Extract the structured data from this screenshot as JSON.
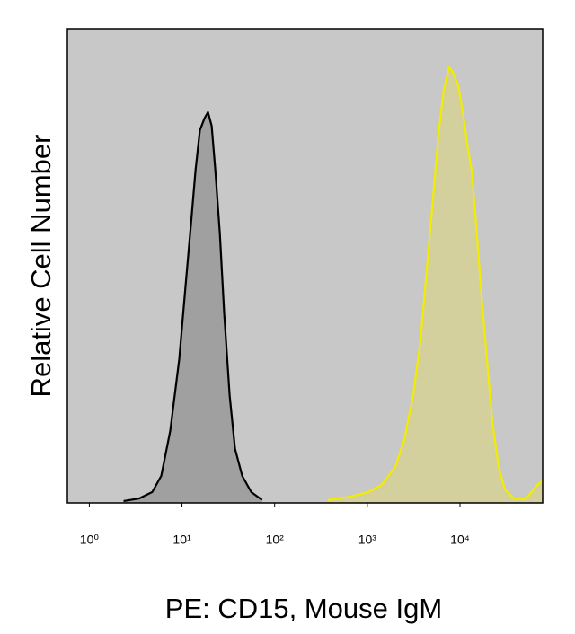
{
  "chart_data": {
    "type": "histogram-overlay",
    "x_label": "PE: CD15, Mouse IgM",
    "y_label": "Relative Cell Number",
    "x_log": true,
    "xlim": [
      0.58,
      78000
    ],
    "ylim": [
      0,
      100
    ],
    "xticks": [
      {
        "value": 1,
        "label": "10⁰"
      },
      {
        "value": 10,
        "label": "10¹"
      },
      {
        "value": 100,
        "label": "10²"
      },
      {
        "value": 1000,
        "label": "10³"
      },
      {
        "value": 10000,
        "label": "10⁴"
      }
    ],
    "background": "#c8c8c8",
    "series": [
      {
        "color": "#000000",
        "fill": "#999999",
        "x": [
          2.34,
          3.42,
          4.78,
          5.98,
          7.48,
          9.35,
          10.9,
          12.5,
          14.0,
          15.6,
          17.5,
          19.1,
          20.9,
          22.9,
          25.6,
          28.6,
          32.7,
          37.4,
          44.7,
          55.9,
          73.1
        ],
        "values": [
          0.4,
          0.9,
          2.3,
          5.7,
          15.2,
          30.3,
          45.5,
          58.7,
          70.1,
          78.6,
          81.1,
          82.4,
          79.5,
          70.1,
          56.8,
          39.8,
          22.7,
          11.4,
          5.7,
          2.3,
          0.6
        ]
      },
      {
        "color": "#f2ec00",
        "fill": "#d6d196",
        "x": [
          374,
          655,
          1023,
          1430,
          2000,
          2500,
          3126,
          3740,
          4375,
          5115,
          5850,
          6685,
          7640,
          8360,
          9570,
          10940,
          11970,
          13370,
          14960,
          17100,
          19550,
          22390,
          26140,
          30550,
          38280,
          51170,
          68400,
          78000
        ],
        "values": [
          0.6,
          1.3,
          2.3,
          3.8,
          7.6,
          13.3,
          22.7,
          34.1,
          49.2,
          64.4,
          77.7,
          87.1,
          91.9,
          90.9,
          88.1,
          81.4,
          75.8,
          70.1,
          58.7,
          43.6,
          30.3,
          17.0,
          7.6,
          2.8,
          0.9,
          0.8,
          3.8,
          4.7
        ]
      }
    ]
  }
}
